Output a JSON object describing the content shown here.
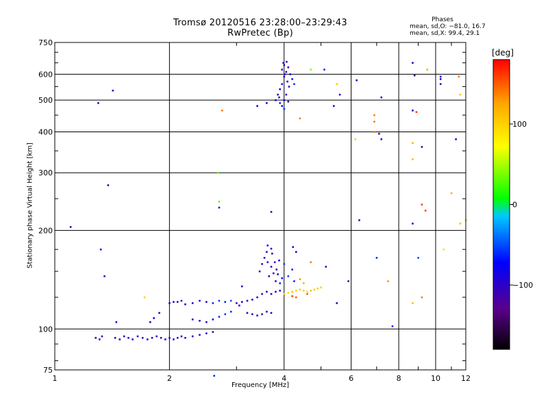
{
  "header": {
    "title": "Tromsø 20120516 23:28:00–23:29:43",
    "subtitle": "RwPretec (Bp)"
  },
  "phases": {
    "title": "Phases",
    "line_o": "mean, sd,O: −81.0, 16.7",
    "line_x": "mean, sd,X: 99.4, 29.1"
  },
  "chart_data": {
    "type": "scatter",
    "xlabel": "Frequency [MHz]",
    "ylabel": "Stationary phase Virtual Height [km]",
    "x_scale": "log",
    "y_scale": "log",
    "xlim": [
      1,
      12
    ],
    "ylim": [
      75,
      750
    ],
    "x_ticks": [
      1,
      2,
      4,
      6,
      8,
      10,
      12
    ],
    "x_tick_labels": [
      "1",
      "2",
      "4",
      "6",
      "8",
      "10",
      "12"
    ],
    "y_ticks": [
      75,
      100,
      200,
      300,
      400,
      500,
      600,
      750
    ],
    "y_tick_labels": [
      "75",
      "100",
      "200",
      "300",
      "400",
      "500",
      "600",
      "750"
    ],
    "grid": true,
    "colorbar": {
      "label": "[deg]",
      "range": [
        -180,
        180
      ],
      "ticks": [
        100,
        0,
        -100
      ],
      "tick_labels": [
        "100",
        "0",
        "−100"
      ],
      "colors": [
        "#000000",
        "#5a008c",
        "#0000ff",
        "#00c8ff",
        "#00ff00",
        "#ffff00",
        "#ffa500",
        "#ff0000"
      ]
    },
    "series": [
      {
        "points": [
          [
            1.28,
            94,
            -100
          ],
          [
            1.31,
            93,
            -95
          ],
          [
            1.33,
            95,
            -105
          ],
          [
            1.44,
            94,
            -100
          ],
          [
            1.48,
            93,
            -98
          ],
          [
            1.52,
            95,
            -102
          ],
          [
            1.56,
            94,
            -100
          ],
          [
            1.6,
            93,
            -97
          ],
          [
            1.65,
            95,
            -103
          ],
          [
            1.7,
            94,
            -100
          ],
          [
            1.75,
            93,
            -96
          ],
          [
            1.8,
            94,
            -101
          ],
          [
            1.85,
            95,
            -99
          ],
          [
            1.9,
            94,
            -104
          ],
          [
            1.95,
            93,
            -100
          ],
          [
            2.0,
            94,
            -98
          ],
          [
            2.05,
            93,
            -101
          ],
          [
            2.1,
            94,
            -100
          ],
          [
            2.15,
            95,
            -97
          ],
          [
            2.2,
            94,
            -102
          ],
          [
            2.3,
            95,
            -100
          ],
          [
            2.4,
            96,
            -98
          ],
          [
            2.5,
            97,
            -96
          ],
          [
            2.6,
            98,
            -100
          ],
          [
            1.78,
            105,
            -100
          ],
          [
            1.82,
            108,
            -95
          ],
          [
            2.0,
            120,
            -100
          ],
          [
            2.05,
            121,
            -98
          ],
          [
            2.1,
            121,
            -102
          ],
          [
            2.15,
            122,
            -100
          ],
          [
            2.2,
            119,
            -97
          ],
          [
            2.3,
            120,
            -99
          ],
          [
            2.4,
            122,
            -101
          ],
          [
            2.5,
            121,
            -100
          ],
          [
            2.6,
            120,
            -60
          ],
          [
            2.7,
            122,
            -55
          ],
          [
            2.8,
            121,
            -65
          ],
          [
            2.9,
            122,
            -50
          ],
          [
            2.3,
            107,
            -100
          ],
          [
            2.4,
            106,
            -98
          ],
          [
            2.5,
            105,
            -102
          ],
          [
            2.6,
            107,
            -70
          ],
          [
            2.7,
            109,
            -60
          ],
          [
            2.8,
            111,
            -55
          ],
          [
            2.9,
            113,
            -60
          ],
          [
            3.0,
            120,
            -100
          ],
          [
            3.1,
            121,
            -95
          ],
          [
            3.2,
            122,
            -100
          ],
          [
            3.3,
            123,
            -98
          ],
          [
            3.4,
            125,
            -102
          ],
          [
            3.5,
            128,
            -100
          ],
          [
            3.6,
            130,
            -97
          ],
          [
            3.7,
            128,
            -99
          ],
          [
            3.8,
            130,
            -101
          ],
          [
            3.9,
            131,
            -100
          ],
          [
            3.05,
            118,
            -100
          ],
          [
            3.1,
            135,
            -95
          ],
          [
            3.2,
            112,
            -100
          ],
          [
            3.3,
            111,
            -98
          ],
          [
            3.4,
            110,
            -102
          ],
          [
            3.5,
            111,
            -100
          ],
          [
            3.6,
            113,
            -97
          ],
          [
            3.7,
            112,
            -99
          ],
          [
            3.45,
            150,
            -100
          ],
          [
            3.5,
            158,
            -95
          ],
          [
            3.55,
            165,
            -100
          ],
          [
            3.6,
            172,
            -98
          ],
          [
            3.62,
            160,
            -102
          ],
          [
            3.65,
            145,
            -100
          ],
          [
            3.7,
            155,
            -97
          ],
          [
            3.72,
            170,
            -99
          ],
          [
            3.75,
            148,
            -101
          ],
          [
            3.78,
            160,
            -100
          ],
          [
            3.8,
            140,
            -95
          ],
          [
            3.82,
            152,
            -100
          ],
          [
            3.85,
            147,
            -98
          ],
          [
            3.88,
            162,
            -102
          ],
          [
            3.9,
            138,
            -60
          ],
          [
            3.95,
            143,
            -70
          ],
          [
            4.0,
            158,
            -55
          ],
          [
            4.1,
            145,
            -50
          ],
          [
            4.2,
            152,
            -65
          ],
          [
            4.25,
            140,
            -60
          ],
          [
            3.62,
            180,
            -100
          ],
          [
            3.7,
            176,
            -95
          ],
          [
            4.22,
            178,
            -100
          ],
          [
            4.3,
            172,
            -98
          ],
          [
            4.0,
            128,
            100
          ],
          [
            4.1,
            129,
            95
          ],
          [
            4.2,
            130,
            110
          ],
          [
            4.3,
            131,
            100
          ],
          [
            4.4,
            132,
            105
          ],
          [
            4.5,
            131,
            100
          ],
          [
            4.6,
            130,
            95
          ],
          [
            4.7,
            131,
            110
          ],
          [
            4.8,
            132,
            100
          ],
          [
            4.9,
            133,
            105
          ],
          [
            5.0,
            134,
            100
          ],
          [
            4.4,
            142,
            130
          ],
          [
            4.5,
            138,
            120
          ],
          [
            4.7,
            160,
            140
          ],
          [
            4.6,
            128,
            150
          ],
          [
            4.3,
            125,
            150
          ],
          [
            4.2,
            126,
            160
          ],
          [
            3.85,
            520,
            -100
          ],
          [
            3.9,
            540,
            -95
          ],
          [
            3.95,
            560,
            -100
          ],
          [
            4.0,
            590,
            -98
          ],
          [
            4.05,
            610,
            -102
          ],
          [
            4.1,
            630,
            -100
          ],
          [
            4.0,
            640,
            -97
          ],
          [
            3.95,
            620,
            -99
          ],
          [
            4.08,
            570,
            -101
          ],
          [
            4.12,
            550,
            -100
          ],
          [
            3.8,
            500,
            -95
          ],
          [
            3.9,
            490,
            -60
          ],
          [
            3.95,
            480,
            -70
          ],
          [
            4.0,
            470,
            -55
          ],
          [
            4.02,
            600,
            -60
          ],
          [
            4.05,
            520,
            -100
          ],
          [
            4.15,
            600,
            -95
          ],
          [
            4.2,
            580,
            -65
          ],
          [
            4.25,
            560,
            -60
          ],
          [
            3.88,
            510,
            -100
          ],
          [
            4.0,
            500,
            -95
          ],
          [
            4.1,
            495,
            -100
          ],
          [
            3.98,
            650,
            -98
          ],
          [
            4.06,
            655,
            -100
          ],
          [
            4.7,
            620,
            40
          ],
          [
            5.1,
            620,
            -60
          ],
          [
            5.5,
            560,
            100
          ],
          [
            5.6,
            520,
            -100
          ],
          [
            5.4,
            480,
            -100
          ],
          [
            4.4,
            440,
            140
          ],
          [
            3.6,
            490,
            -100
          ],
          [
            3.4,
            480,
            -100
          ],
          [
            1.3,
            490,
            -100
          ],
          [
            1.42,
            535,
            -100
          ],
          [
            1.1,
            205,
            -100
          ],
          [
            1.38,
            275,
            -100
          ],
          [
            1.32,
            175,
            -90
          ],
          [
            1.35,
            145,
            -100
          ],
          [
            1.45,
            105,
            -100
          ],
          [
            1.72,
            125,
            100
          ],
          [
            1.88,
            112,
            -100
          ],
          [
            2.62,
            72,
            -60
          ],
          [
            2.68,
            300,
            30
          ],
          [
            2.7,
            245,
            30
          ],
          [
            2.7,
            235,
            -100
          ],
          [
            2.75,
            465,
            140
          ],
          [
            3.7,
            228,
            -100
          ],
          [
            5.15,
            155,
            -100
          ],
          [
            5.5,
            120,
            -100
          ],
          [
            5.9,
            140,
            -100
          ],
          [
            6.2,
            575,
            -100
          ],
          [
            6.15,
            380,
            100
          ],
          [
            6.3,
            215,
            -100
          ],
          [
            6.9,
            450,
            140
          ],
          [
            6.9,
            430,
            140
          ],
          [
            6.9,
            400,
            140
          ],
          [
            7.1,
            395,
            -100
          ],
          [
            7.2,
            380,
            -100
          ],
          [
            7.2,
            510,
            -100
          ],
          [
            7.0,
            165,
            -60
          ],
          [
            7.5,
            140,
            130
          ],
          [
            7.7,
            102,
            -60
          ],
          [
            8.7,
            650,
            -100
          ],
          [
            8.8,
            595,
            -100
          ],
          [
            8.7,
            465,
            -100
          ],
          [
            8.9,
            460,
            160
          ],
          [
            8.7,
            370,
            120
          ],
          [
            8.7,
            330,
            110
          ],
          [
            9.2,
            360,
            -100
          ],
          [
            9.5,
            620,
            80
          ],
          [
            9.5,
            620,
            120
          ],
          [
            9.2,
            240,
            160
          ],
          [
            9.4,
            230,
            160
          ],
          [
            8.7,
            210,
            -100
          ],
          [
            9.0,
            165,
            -50
          ],
          [
            8.7,
            120,
            110
          ],
          [
            9.2,
            125,
            140
          ],
          [
            10.3,
            590,
            -100
          ],
          [
            10.3,
            560,
            -100
          ],
          [
            10.3,
            580,
            -100
          ],
          [
            10.5,
            175,
            90
          ],
          [
            11.0,
            260,
            120
          ],
          [
            11.3,
            380,
            -100
          ],
          [
            11.5,
            590,
            140
          ],
          [
            11.6,
            520,
            110
          ],
          [
            11.6,
            210,
            110
          ],
          [
            12.0,
            215,
            110
          ]
        ]
      }
    ]
  }
}
